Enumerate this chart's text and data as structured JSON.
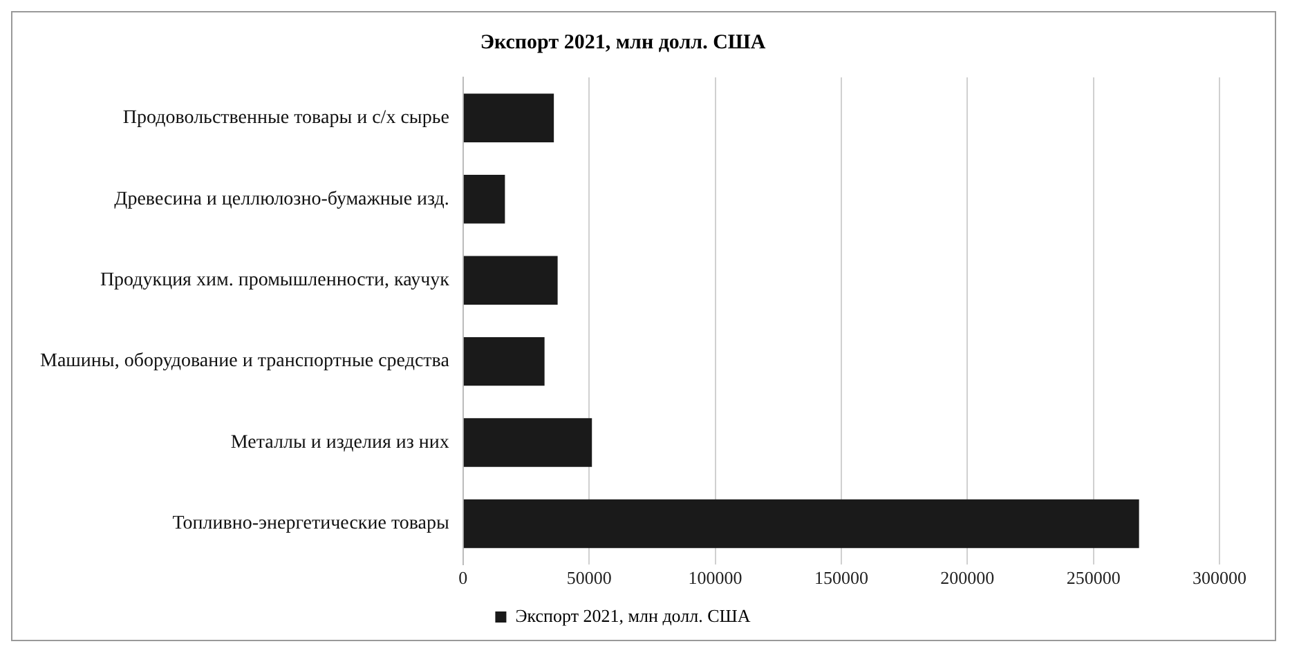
{
  "chart_data": {
    "type": "bar",
    "orientation": "horizontal",
    "title": "Экспорт 2021, млн долл. США",
    "categories": [
      "Продовольственные товары и с/х сырье",
      "Древесина и целлюлозно-бумажные изд.",
      "Продукция хим. промышленности, каучук",
      "Машины, оборудование и транспортные средства",
      "Металлы и изделия из них",
      "Топливно-энергетические товары"
    ],
    "series": [
      {
        "name": "Экспорт 2021, млн долл. США",
        "color": "#1a1a1a",
        "values": [
          36000,
          16600,
          37500,
          32300,
          51100,
          268100
        ]
      }
    ],
    "xlim": [
      0,
      300000
    ],
    "xticks": [
      0,
      50000,
      100000,
      150000,
      200000,
      250000,
      300000
    ],
    "grid": "x",
    "legend": "bottom"
  }
}
